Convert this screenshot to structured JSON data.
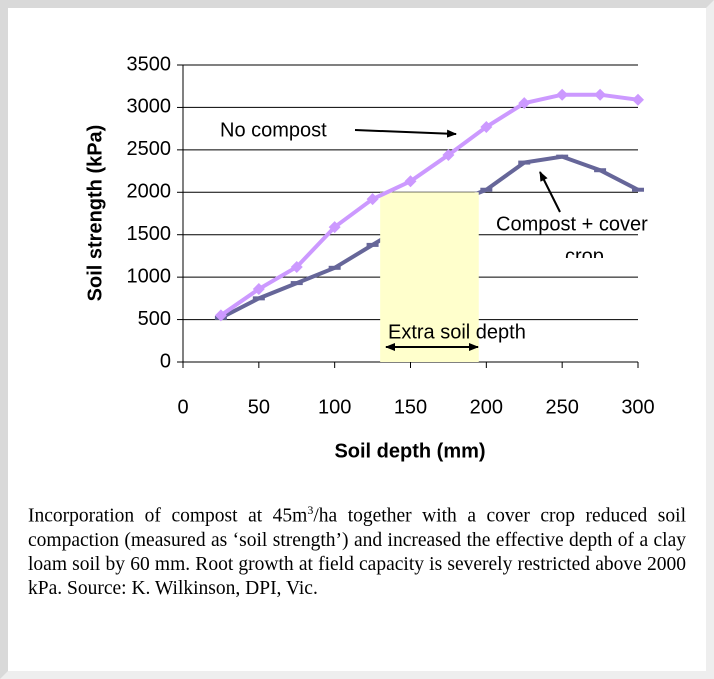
{
  "chart_data": {
    "type": "line",
    "xlabel": "Soil depth (mm)",
    "ylabel": "Soil strength (kPa)",
    "x": [
      25,
      50,
      75,
      100,
      125,
      150,
      175,
      200,
      225,
      250,
      275,
      300
    ],
    "series": [
      {
        "name": "Compost + cover crop",
        "color": "#666699",
        "marker": "dash",
        "values": [
          520,
          750,
          930,
          1110,
          1380,
          1650,
          1850,
          2030,
          2350,
          2420,
          2260,
          2030
        ]
      },
      {
        "name": "No compost",
        "color": "#cc99ff",
        "marker": "diamond",
        "values": [
          550,
          860,
          1120,
          1590,
          1920,
          2130,
          2440,
          2770,
          3050,
          3150,
          3150,
          3090
        ]
      }
    ],
    "highlight": {
      "label": "Extra soil depth",
      "xrange": [
        130,
        195
      ],
      "yrange": [
        0,
        2000
      ],
      "color": "#ffffcc"
    },
    "annotations": [
      {
        "lines": [
          "No compost"
        ]
      },
      {
        "lines": [
          "Compost + cover",
          "crop"
        ]
      }
    ],
    "xlim": [
      0,
      300
    ],
    "xticks": [
      0,
      50,
      100,
      150,
      200,
      250,
      300
    ],
    "ylim": [
      0,
      3500
    ],
    "yticks": [
      0,
      500,
      1000,
      1500,
      2000,
      2500,
      3000,
      3500
    ],
    "grid": true
  },
  "caption": {
    "before": "Incorporation of compost at 45m",
    "superscript": "3",
    "after": "/ha together with a cover crop reduced soil compaction (measured as ‘soil strength’) and increased the effective depth of a clay loam soil by 60 mm. Root growth at field capacity is severely restricted above 2000 kPa.  Source: K. Wilkinson, DPI, Vic."
  }
}
